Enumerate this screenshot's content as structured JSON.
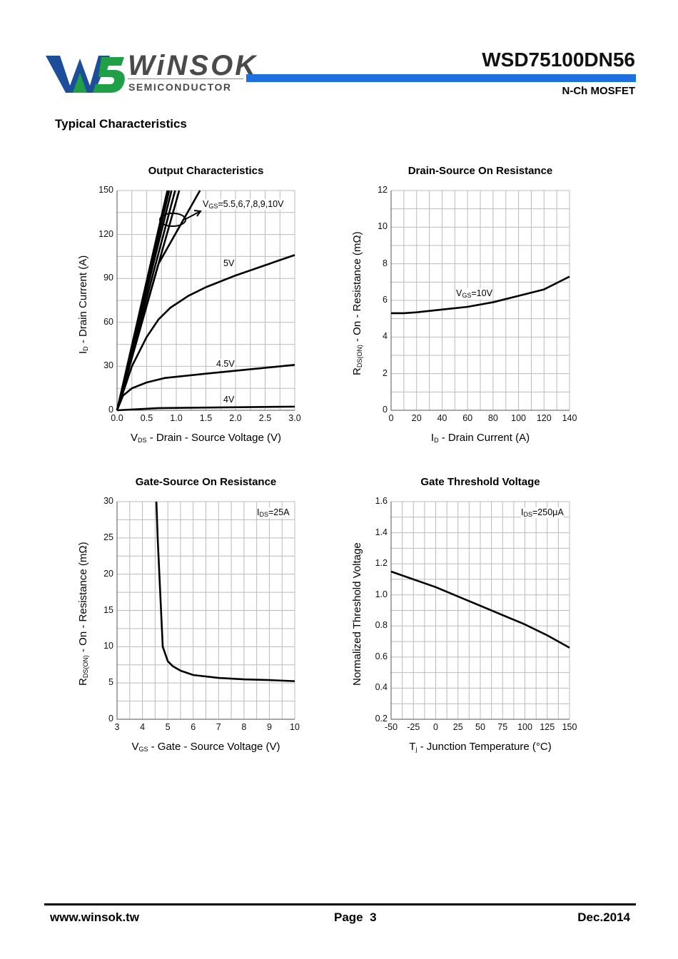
{
  "header": {
    "logo_text": "WiNSOK",
    "logo_sub": "SEMICONDUCTOR",
    "part_number": "WSD75100DN56",
    "device_type": "N-Ch MOSFET",
    "brand_blue": "#1e4e9a",
    "brand_green": "#1fa046",
    "bar_color": "#1e6fe0"
  },
  "section_title": "Typical Characteristics",
  "chart_data": [
    {
      "type": "line",
      "title": "Output Characteristics",
      "xlabel": {
        "main": "V",
        "sub": "DS",
        "rest": " - Drain - Source Voltage (V)"
      },
      "ylabel": {
        "main": "I",
        "sub": "D",
        "rest": " - Drain Current (A)"
      },
      "xlim": [
        0,
        3
      ],
      "ylim": [
        0,
        150
      ],
      "xticks": [
        "0.0",
        "0.5",
        "1.0",
        "1.5",
        "2.0",
        "2.5",
        "3.0"
      ],
      "yticks": [
        "0",
        "30",
        "60",
        "90",
        "120",
        "150"
      ],
      "xminor": 12,
      "yminor": 10,
      "grid": true,
      "annotations": [
        {
          "main": "V",
          "sub": "GS",
          "rest": "=5.5,6,7,8,9,10V"
        },
        {
          "text": "5V"
        },
        {
          "text": "4.5V"
        },
        {
          "text": "4V"
        }
      ],
      "series": [
        {
          "name": "4V",
          "x": [
            0,
            0.7,
            3
          ],
          "y": [
            0,
            1.5,
            2.5
          ]
        },
        {
          "name": "4.5V",
          "x": [
            0,
            0.1,
            0.25,
            0.5,
            0.8,
            1.5,
            2,
            3
          ],
          "y": [
            0,
            10,
            15,
            19,
            22,
            25,
            27,
            31
          ]
        },
        {
          "name": "5V",
          "x": [
            0,
            0.25,
            0.5,
            0.7,
            0.9,
            1.2,
            1.5,
            2,
            2.5,
            3
          ],
          "y": [
            0,
            30,
            50,
            62,
            70,
            78,
            84,
            92,
            99,
            106
          ]
        },
        {
          "name": "5.5V",
          "x": [
            0,
            0.7,
            1.4
          ],
          "y": [
            0,
            100,
            150
          ]
        },
        {
          "name": "6V",
          "x": [
            0,
            1.05
          ],
          "y": [
            0,
            150
          ]
        },
        {
          "name": "7V",
          "x": [
            0,
            0.98
          ],
          "y": [
            0,
            150
          ]
        },
        {
          "name": "8V",
          "x": [
            0,
            0.92
          ],
          "y": [
            0,
            150
          ]
        },
        {
          "name": "9V",
          "x": [
            0,
            0.88
          ],
          "y": [
            0,
            150
          ]
        },
        {
          "name": "10V",
          "x": [
            0,
            0.85
          ],
          "y": [
            0,
            150
          ]
        }
      ]
    },
    {
      "type": "line",
      "title": "Drain-Source On Resistance",
      "xlabel": {
        "main": "I",
        "sub": "D",
        "rest": " - Drain Current (A)"
      },
      "ylabel": {
        "main": "R",
        "sub": "DS(ON)",
        "rest": " - On - Resistance (mΩ)"
      },
      "xlim": [
        0,
        140
      ],
      "ylim": [
        0,
        12
      ],
      "xticks": [
        "0",
        "20",
        "40",
        "60",
        "80",
        "100",
        "120",
        "140"
      ],
      "yticks": [
        "0",
        "2",
        "4",
        "6",
        "8",
        "10",
        "12"
      ],
      "xminor": 14,
      "yminor": 12,
      "grid": true,
      "annotations": [
        {
          "main": "V",
          "sub": "GS",
          "rest": "=10V"
        }
      ],
      "series": [
        {
          "name": "VGS=10V",
          "x": [
            0,
            10,
            20,
            40,
            60,
            80,
            100,
            120,
            140
          ],
          "y": [
            5.3,
            5.3,
            5.35,
            5.5,
            5.65,
            5.9,
            6.25,
            6.6,
            7.3
          ]
        }
      ]
    },
    {
      "type": "line",
      "title": "Gate-Source On Resistance",
      "xlabel": {
        "main": "V",
        "sub": "GS",
        "rest": " - Gate - Source Voltage (V)"
      },
      "ylabel": {
        "main": "R",
        "sub": "DS(ON)",
        "rest": " - On - Resistance (mΩ)"
      },
      "xlim": [
        3,
        10
      ],
      "ylim": [
        0,
        30
      ],
      "xticks": [
        "3",
        "4",
        "5",
        "6",
        "7",
        "8",
        "9",
        "10"
      ],
      "yticks": [
        "0",
        "5",
        "10",
        "15",
        "20",
        "25",
        "30"
      ],
      "xminor": 14,
      "yminor": 12,
      "grid": true,
      "annotations": [
        {
          "main": "I",
          "sub": "DS",
          "rest": "=25A"
        }
      ],
      "series": [
        {
          "name": "IDS=25A",
          "x": [
            4.55,
            4.6,
            4.8,
            5,
            5.2,
            5.5,
            6,
            7,
            8,
            9,
            10
          ],
          "y": [
            30,
            25,
            10,
            8,
            7.3,
            6.7,
            6.1,
            5.7,
            5.5,
            5.4,
            5.25
          ]
        }
      ]
    },
    {
      "type": "line",
      "title": "Gate Threshold Voltage",
      "xlabel": {
        "main": "T",
        "sub": "j",
        "rest": " - Junction Temperature (°C)"
      },
      "ylabel": {
        "main": "Normalized Threshold Voltage",
        "sub": "",
        "rest": ""
      },
      "xlim": [
        -50,
        150
      ],
      "ylim": [
        0.2,
        1.6
      ],
      "xticks": [
        "-50",
        "-25",
        "0",
        "25",
        "50",
        "75",
        "100",
        "125",
        "150"
      ],
      "yticks": [
        "0.2",
        "0.4",
        "0.6",
        "0.8",
        "1.0",
        "1.2",
        "1.4",
        "1.6"
      ],
      "xminor": 16,
      "yminor": 14,
      "grid": true,
      "annotations": [
        {
          "main": "I",
          "sub": "DS",
          "rest": "=250μA"
        }
      ],
      "series": [
        {
          "name": "IDS=250uA",
          "x": [
            -50,
            -25,
            0,
            25,
            50,
            75,
            100,
            125,
            150
          ],
          "y": [
            1.15,
            1.1,
            1.05,
            0.99,
            0.93,
            0.87,
            0.81,
            0.74,
            0.66
          ]
        }
      ]
    }
  ],
  "footer": {
    "website": "www.winsok.tw",
    "page": "Page  3",
    "date": "Dec.2014"
  }
}
